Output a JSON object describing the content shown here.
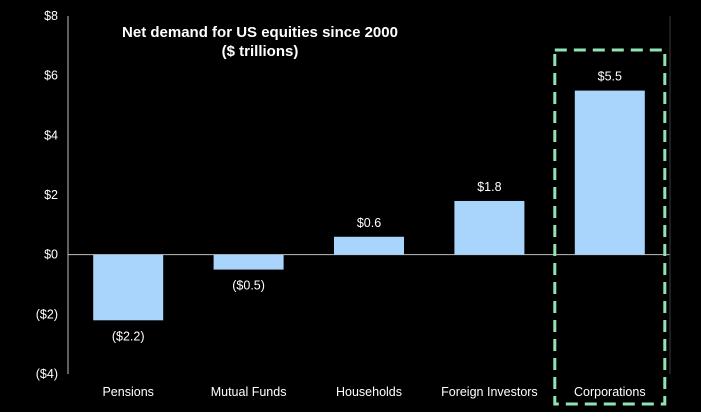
{
  "chart_data": {
    "type": "bar",
    "title": "Net demand for US equities since 2000",
    "subtitle": "($ trillions)",
    "categories": [
      "Pensions",
      "Mutual Funds",
      "Households",
      "Foreign Investors",
      "Corporations"
    ],
    "values": [
      -2.2,
      -0.5,
      0.6,
      1.8,
      5.5
    ],
    "data_labels": [
      "($2.2)",
      "($0.5)",
      "$0.6",
      "$1.8",
      "$5.5"
    ],
    "ylim": [
      -4,
      8
    ],
    "yticks": [
      -4,
      -2,
      0,
      2,
      4,
      6,
      8
    ],
    "ytick_labels": [
      "($4)",
      "($2)",
      "$0",
      "$2",
      "$4",
      "$6",
      "$8"
    ],
    "xlabel": "",
    "ylabel": "",
    "grid": false,
    "highlight_category": "Corporations",
    "colors": {
      "background": "#000000",
      "bar": "#a9d4fb",
      "axis": "#bfbfbf",
      "text": "#ffffff",
      "highlight": "#8fe3b4"
    }
  }
}
